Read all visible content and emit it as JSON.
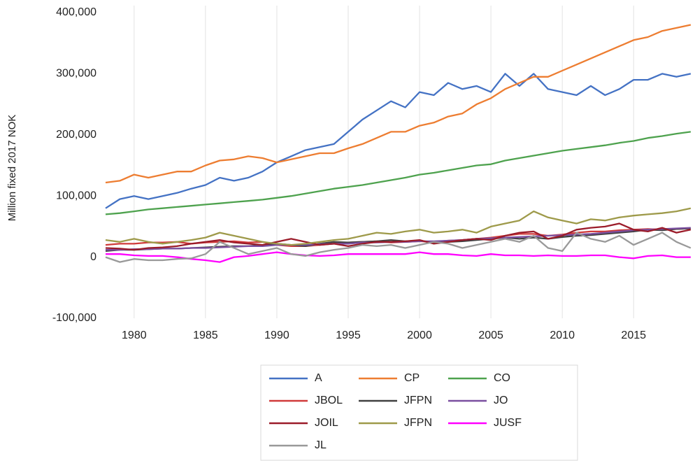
{
  "chart_data": {
    "type": "line",
    "y_label": "Million fixed 2017 NOK",
    "x": [
      1978,
      1979,
      1980,
      1981,
      1982,
      1983,
      1984,
      1985,
      1986,
      1987,
      1988,
      1989,
      1990,
      1991,
      1992,
      1993,
      1994,
      1995,
      1996,
      1997,
      1998,
      1999,
      2000,
      2001,
      2002,
      2003,
      2004,
      2005,
      2006,
      2007,
      2008,
      2009,
      2010,
      2011,
      2012,
      2013,
      2014,
      2015,
      2016,
      2017,
      2018,
      2019
    ],
    "xlim": [
      1978,
      2019.3
    ],
    "xticks": [
      1980,
      1985,
      1990,
      1995,
      2000,
      2005,
      2010,
      2015
    ],
    "ylim": [
      -100000,
      400000
    ],
    "yticks": [
      {
        "value": -100000,
        "label": "-100,000"
      },
      0,
      {
        "value": 100000,
        "label": "100,000"
      },
      {
        "value": 200000,
        "label": "200,000"
      },
      {
        "value": 300000,
        "label": "300,000"
      },
      {
        "value": 400000,
        "label": "400,000"
      }
    ],
    "grid": "x",
    "series": [
      {
        "name": "A",
        "color": "#4472c4",
        "values": [
          80000,
          95000,
          100000,
          95000,
          100000,
          105000,
          112000,
          118000,
          130000,
          125000,
          130000,
          140000,
          155000,
          165000,
          175000,
          180000,
          185000,
          205000,
          225000,
          240000,
          255000,
          245000,
          270000,
          265000,
          285000,
          275000,
          280000,
          270000,
          300000,
          280000,
          300000,
          275000,
          270000,
          265000,
          280000,
          265000,
          275000,
          290000,
          290000,
          300000,
          295000,
          300000
        ]
      },
      {
        "name": "CP",
        "color": "#ed7d31",
        "values": [
          122000,
          125000,
          135000,
          130000,
          135000,
          140000,
          140000,
          150000,
          158000,
          160000,
          165000,
          162000,
          155000,
          160000,
          165000,
          170000,
          170000,
          178000,
          185000,
          195000,
          205000,
          205000,
          215000,
          220000,
          230000,
          235000,
          250000,
          260000,
          275000,
          285000,
          295000,
          295000,
          305000,
          315000,
          325000,
          335000,
          345000,
          355000,
          360000,
          370000,
          375000,
          380000
        ]
      },
      {
        "name": "CO",
        "color": "#4ea24e",
        "values": [
          70000,
          72000,
          75000,
          78000,
          80000,
          82000,
          84000,
          86000,
          88000,
          90000,
          92000,
          94000,
          97000,
          100000,
          104000,
          108000,
          112000,
          115000,
          118000,
          122000,
          126000,
          130000,
          135000,
          138000,
          142000,
          146000,
          150000,
          152000,
          158000,
          162000,
          166000,
          170000,
          174000,
          177000,
          180000,
          183000,
          187000,
          190000,
          195000,
          198000,
          202000,
          205000
        ]
      },
      {
        "name": "JBOL",
        "color": "#d03a3a",
        "values": [
          20000,
          22000,
          22000,
          24000,
          24000,
          25000,
          22000,
          24000,
          25000,
          26000,
          24000,
          25000,
          20000,
          18000,
          18000,
          20000,
          22000,
          24000,
          25000,
          26000,
          24000,
          25000,
          26000,
          25000,
          27000,
          28000,
          30000,
          32000,
          35000,
          38000,
          38000,
          35000,
          37000,
          40000,
          42000,
          42000,
          44000,
          45000,
          46000,
          45000,
          46000,
          47000
        ]
      },
      {
        "name": "JFPN",
        "color": "#404040",
        "values": [
          10000,
          12000,
          12000,
          13000,
          14000,
          14000,
          15000,
          16000,
          17000,
          18000,
          18000,
          20000,
          22000,
          20000,
          18000,
          22000,
          25000,
          24000,
          25000,
          26000,
          28000,
          26000,
          27000,
          24000,
          25000,
          26000,
          28000,
          30000,
          32000,
          30000,
          32000,
          30000,
          33000,
          35000,
          36000,
          38000,
          40000,
          42000,
          45000,
          44000,
          46000,
          47000
        ]
      },
      {
        "name": "JO",
        "color": "#7b4fa0",
        "values": [
          12000,
          12000,
          13000,
          13000,
          14000,
          14000,
          15000,
          15000,
          16000,
          17000,
          18000,
          18000,
          20000,
          20000,
          20000,
          21000,
          22000,
          22000,
          24000,
          24000,
          25000,
          25000,
          26000,
          26000,
          27000,
          28000,
          30000,
          31000,
          32000,
          33000,
          34000,
          35000,
          36000,
          37000,
          38000,
          40000,
          42000,
          44000,
          45000,
          46000,
          47000,
          48000
        ]
      },
      {
        "name": "JOIL",
        "color": "#9b1c2a",
        "values": [
          15000,
          14000,
          12000,
          15000,
          16000,
          18000,
          22000,
          25000,
          28000,
          24000,
          22000,
          20000,
          25000,
          30000,
          25000,
          20000,
          22000,
          18000,
          22000,
          25000,
          25000,
          26000,
          28000,
          22000,
          25000,
          28000,
          30000,
          28000,
          35000,
          40000,
          42000,
          30000,
          35000,
          45000,
          48000,
          50000,
          55000,
          45000,
          42000,
          48000,
          40000,
          45000
        ]
      },
      {
        "name": "JFPN",
        "color": "#9e9a4a",
        "values": [
          28000,
          25000,
          30000,
          25000,
          22000,
          25000,
          28000,
          32000,
          40000,
          35000,
          30000,
          25000,
          22000,
          20000,
          22000,
          25000,
          28000,
          30000,
          35000,
          40000,
          38000,
          42000,
          45000,
          40000,
          42000,
          45000,
          40000,
          50000,
          55000,
          60000,
          75000,
          65000,
          60000,
          55000,
          62000,
          60000,
          65000,
          68000,
          70000,
          72000,
          75000,
          80000
        ]
      },
      {
        "name": "JUSF",
        "color": "#ff00ff",
        "values": [
          5000,
          5000,
          3000,
          2000,
          2000,
          0,
          -3000,
          -5000,
          -8000,
          0,
          2000,
          5000,
          8000,
          5000,
          3000,
          2000,
          3000,
          5000,
          5000,
          5000,
          5000,
          5000,
          8000,
          5000,
          5000,
          3000,
          2000,
          5000,
          3000,
          3000,
          2000,
          3000,
          2000,
          2000,
          3000,
          3000,
          0,
          -2000,
          2000,
          3000,
          0,
          0
        ]
      },
      {
        "name": "JL",
        "color": "#999999",
        "values": [
          0,
          -8000,
          -3000,
          -5000,
          -5000,
          -3000,
          -2000,
          5000,
          25000,
          15000,
          5000,
          10000,
          15000,
          5000,
          2000,
          8000,
          12000,
          15000,
          20000,
          18000,
          20000,
          15000,
          20000,
          25000,
          22000,
          15000,
          20000,
          25000,
          30000,
          25000,
          35000,
          15000,
          10000,
          40000,
          30000,
          25000,
          35000,
          20000,
          30000,
          40000,
          25000,
          15000
        ]
      }
    ]
  }
}
